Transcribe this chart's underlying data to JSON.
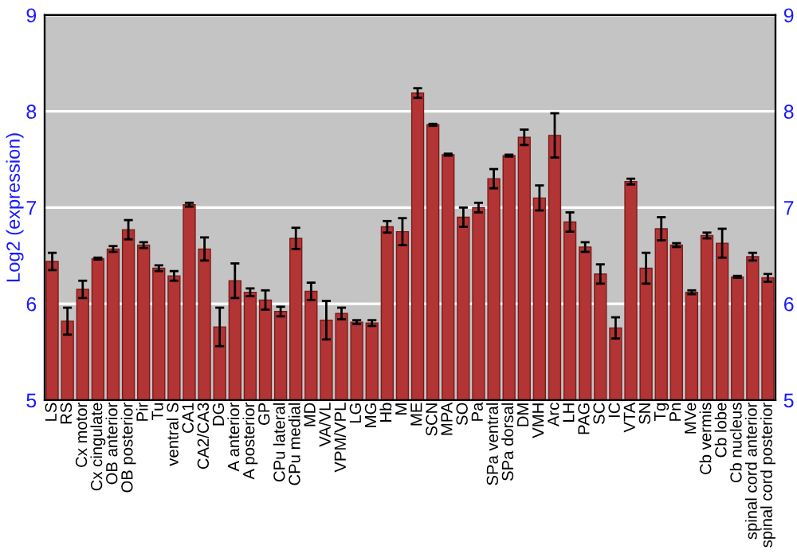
{
  "chart_data": {
    "type": "bar",
    "ylabel": "Log2 (expression)",
    "categories": [
      "LS",
      "RS",
      "Cx motor",
      "Cx cingulate",
      "OB anterior",
      "OB posterior",
      "Pir",
      "Tu",
      "ventral S",
      "CA1",
      "CA2/CA3",
      "DG",
      "A anterior",
      "A posterior",
      "GP",
      "CPu lateral",
      "CPu medial",
      "MD",
      "VA/VL",
      "VPM/VPL",
      "LG",
      "MG",
      "Hb",
      "M",
      "ME",
      "SCN",
      "MPA",
      "SO",
      "Pa",
      "SPa ventral",
      "SPa dorsal",
      "DM",
      "VMH",
      "Arc",
      "LH",
      "PAG",
      "SC",
      "IC",
      "VTA",
      "SN",
      "Tg",
      "Pn",
      "MVe",
      "Cb vermis",
      "Cb lobe",
      "Cb nucleus",
      "spinal cord anterior",
      "spinal cord posterior"
    ],
    "values": [
      6.44,
      5.82,
      6.15,
      6.47,
      6.57,
      6.77,
      6.61,
      6.37,
      6.29,
      7.03,
      6.57,
      5.76,
      6.24,
      6.12,
      6.04,
      5.92,
      6.68,
      6.13,
      5.83,
      5.9,
      5.81,
      5.8,
      6.8,
      6.75,
      8.19,
      7.86,
      7.55,
      6.9,
      7.0,
      7.3,
      7.54,
      7.73,
      7.1,
      7.75,
      6.85,
      6.59,
      6.31,
      5.75,
      7.27,
      6.37,
      6.78,
      6.61,
      6.12,
      6.71,
      6.63,
      6.28,
      6.49,
      6.27
    ],
    "errors": [
      0.09,
      0.14,
      0.09,
      0.01,
      0.03,
      0.1,
      0.03,
      0.03,
      0.05,
      0.02,
      0.12,
      0.2,
      0.18,
      0.04,
      0.1,
      0.05,
      0.11,
      0.09,
      0.2,
      0.06,
      0.02,
      0.03,
      0.06,
      0.14,
      0.05,
      0.01,
      0.01,
      0.1,
      0.05,
      0.1,
      0.01,
      0.08,
      0.13,
      0.23,
      0.1,
      0.05,
      0.1,
      0.11,
      0.03,
      0.16,
      0.12,
      0.02,
      0.02,
      0.03,
      0.15,
      0.01,
      0.04,
      0.04
    ],
    "color": "#b33434",
    "ylim": [
      5,
      9
    ],
    "yticks": [
      5,
      6,
      7,
      8,
      9
    ],
    "y2lim": [
      5,
      9
    ],
    "y2ticks": [
      5,
      6,
      7,
      8,
      9
    ],
    "grid": "y"
  }
}
